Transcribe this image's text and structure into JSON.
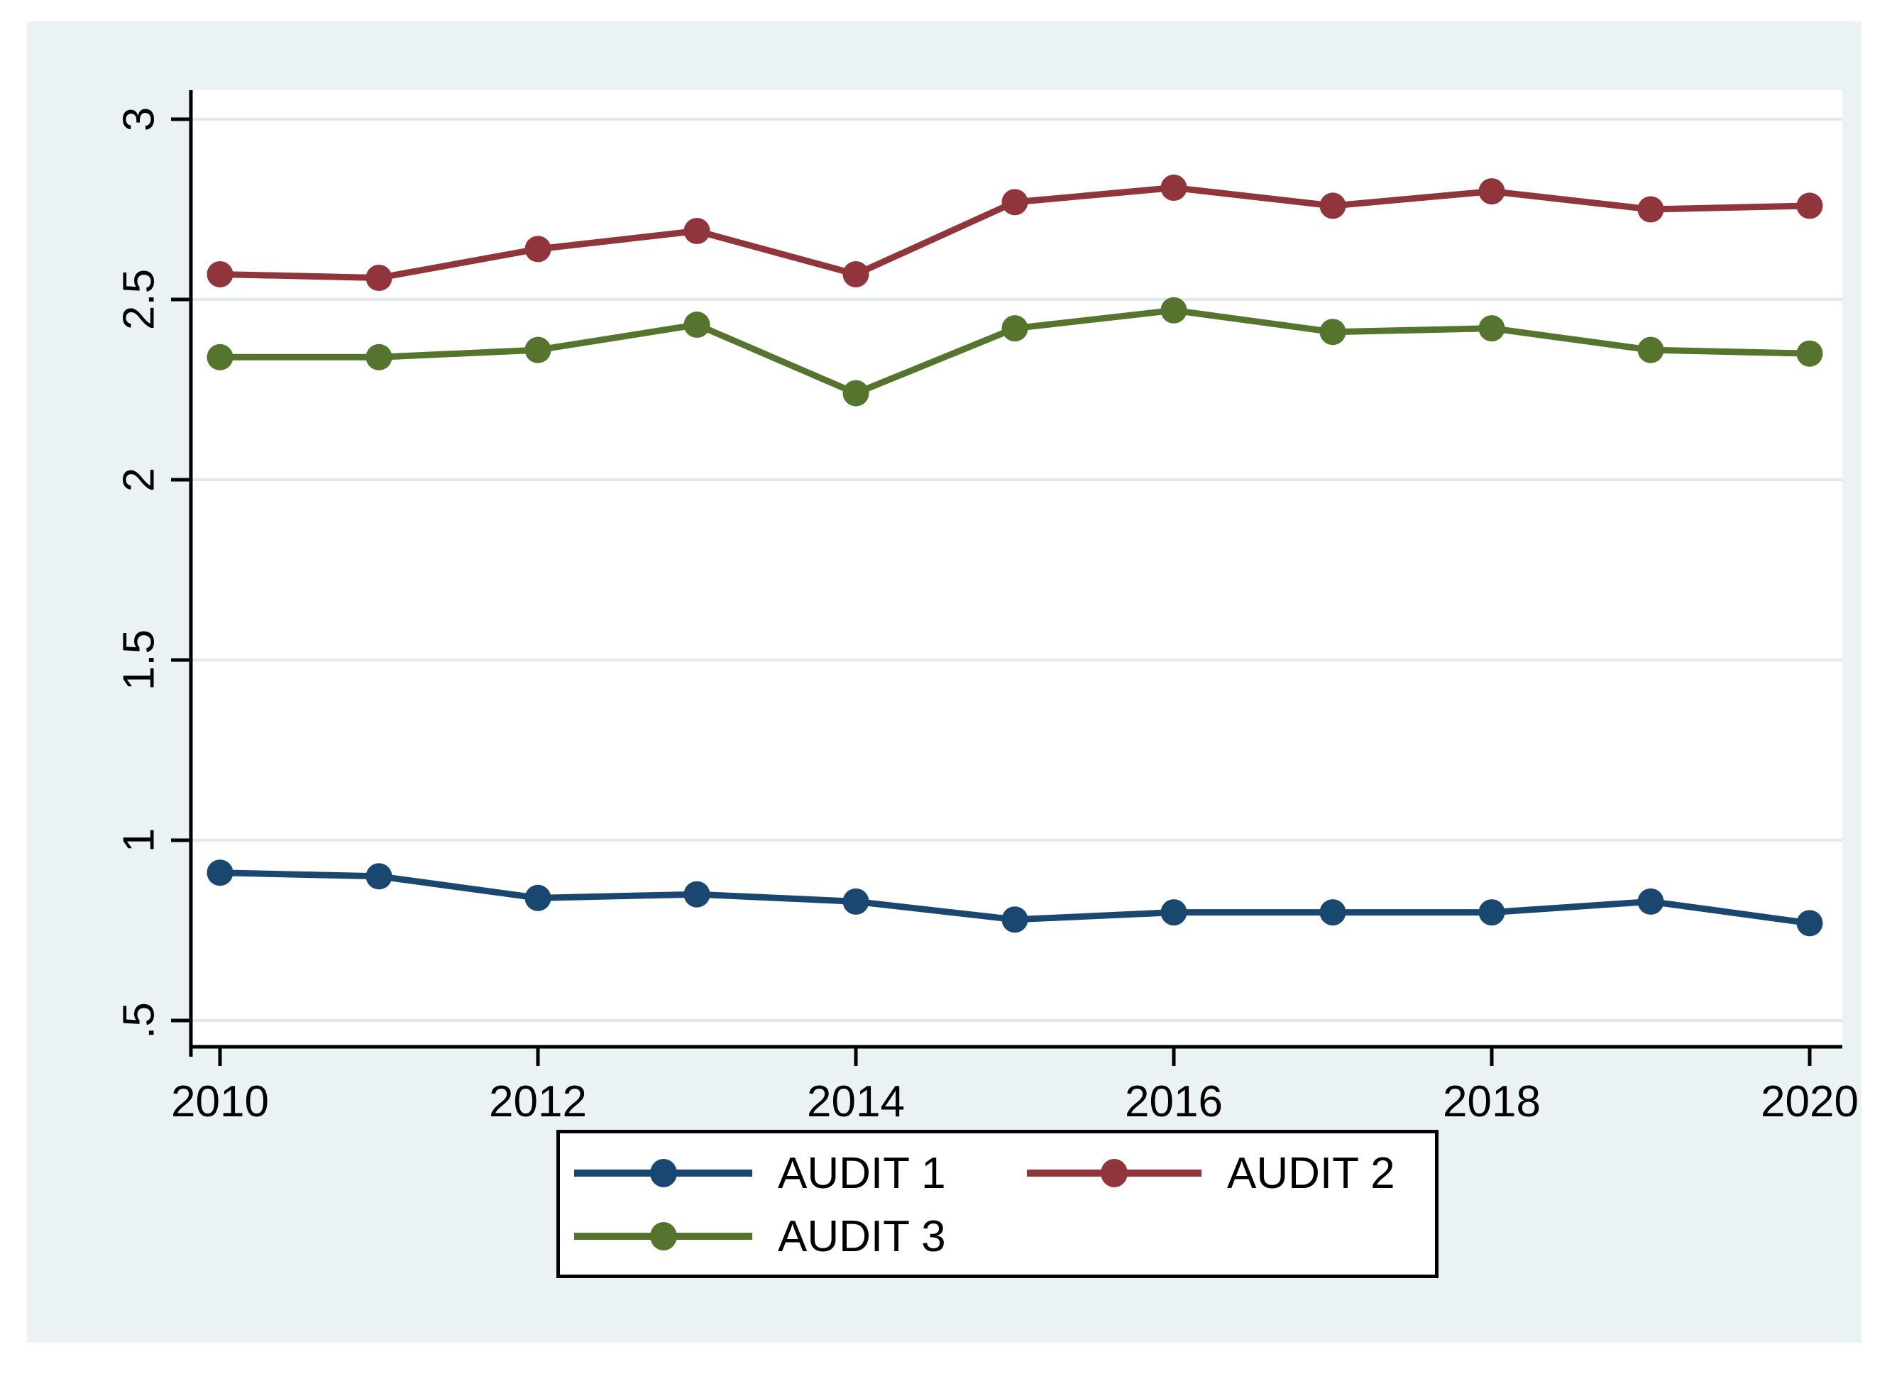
{
  "figure": {
    "background": "#eaf2f3",
    "plot_background": "#ffffff",
    "axis_color": "#000000",
    "grid_color": "#dfeaed",
    "text_color": "#000000"
  },
  "chart_data": {
    "type": "line",
    "title": "",
    "xlabel": "",
    "ylabel": "",
    "x": [
      2010,
      2011,
      2012,
      2013,
      2014,
      2015,
      2016,
      2017,
      2018,
      2019,
      2020
    ],
    "series": [
      {
        "name": "AUDIT 1",
        "color": "#1a476f",
        "values": [
          0.91,
          0.9,
          0.84,
          0.85,
          0.83,
          0.78,
          0.8,
          0.8,
          0.8,
          0.83,
          0.77
        ]
      },
      {
        "name": "AUDIT 2",
        "color": "#90353b",
        "values": [
          2.57,
          2.56,
          2.64,
          2.69,
          2.57,
          2.77,
          2.81,
          2.76,
          2.8,
          2.75,
          2.76
        ]
      },
      {
        "name": "AUDIT 3",
        "color": "#55752f",
        "values": [
          2.34,
          2.34,
          2.36,
          2.43,
          2.24,
          2.42,
          2.47,
          2.41,
          2.42,
          2.36,
          2.35
        ]
      }
    ],
    "ylim": [
      0.5,
      3
    ],
    "xlim": [
      2010,
      2020
    ],
    "yticks": {
      "values": [
        0.5,
        1,
        1.5,
        2,
        2.5,
        3
      ],
      "labels": [
        ".5",
        "1",
        "1.5",
        "2",
        "2.5",
        "3"
      ]
    },
    "xticks": {
      "values": [
        2010,
        2012,
        2014,
        2016,
        2018,
        2020
      ],
      "labels": [
        "2010",
        "2012",
        "2014",
        "2016",
        "2018",
        "2020"
      ]
    },
    "grid": "horizontal",
    "legend_position": "bottom"
  },
  "legend": {
    "items": [
      {
        "label": "AUDIT 1",
        "color": "#1a476f"
      },
      {
        "label": "AUDIT 2",
        "color": "#90353b"
      },
      {
        "label": "AUDIT 3",
        "color": "#55752f"
      }
    ]
  }
}
